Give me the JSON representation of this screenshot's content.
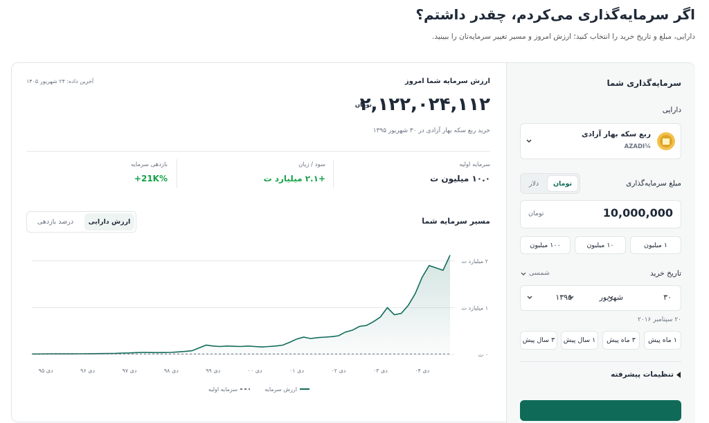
{
  "header": {
    "title": "اگر سرمایه‌گذاری می‌کردم، چقدر داشتم؟",
    "subtitle": "دارایی، مبلغ و تاریخ خرید را انتخاب کنید؛ ارزش امروز و مسیر تغییر سرمایه‌تان را ببینید."
  },
  "form": {
    "title": "سرمایه‌گذاری شما",
    "asset_label": "دارایی",
    "asset": {
      "name": "ربع سکه بهار آزادی",
      "code": "AZADI¼"
    },
    "amount_label": "مبلغ سرمایه‌گذاری",
    "currency_tabs": [
      "تومان",
      "دلار"
    ],
    "amount_input": "10,000,000",
    "amount_unit": "تومان",
    "quick_amounts": [
      "۱ میلیون",
      "۱۰ میلیون",
      "۱۰۰ میلیون"
    ],
    "date_label": "تاریخ خرید",
    "calendar": "شمسی",
    "date": {
      "day": "۳۰",
      "month": "شهریور",
      "year": "۱۳۹۵"
    },
    "gregorian": "۲۰ سپتامبر ۲۰۱۶",
    "quick_dates": [
      "۱ ماه پیش",
      "۳ ماه پیش",
      "۱ سال پیش",
      "۳ سال پیش"
    ],
    "advanced": "تنظیمات پیشرفته"
  },
  "result": {
    "label": "ارزش سرمایه شما امروز",
    "last_update": "آخرین داده: ۲۴ شهریور ۱۴۰۵",
    "value": "۲,۱۲۲,۰۲۴,۱۱۲",
    "value_unit": "تومان",
    "description": "خرید ربع سکه بهار آزادی در ۳۰ شهریور ۱۳۹۵",
    "stats": [
      {
        "label": "سرمایه اولیه",
        "value": "۱۰.۰ میلیون ت"
      },
      {
        "label": "سود / زیان",
        "value": "+۲.۱ میلیارد ت"
      },
      {
        "label": "بازدهی سرمایه",
        "value": "+21K%"
      }
    ]
  },
  "chart_section": {
    "title": "مسیر سرمایه شما",
    "tabs": [
      "ارزش دارایی",
      "درصد بازدهی"
    ]
  },
  "chart_data": {
    "type": "line",
    "categories": [
      null,
      null,
      "دی ۹۵",
      null,
      null,
      null,
      null,
      null,
      "دی ۹۶",
      null,
      null,
      null,
      null,
      null,
      "دی ۹۷",
      null,
      null,
      null,
      null,
      null,
      "دی ۹۸",
      null,
      null,
      null,
      null,
      null,
      "دی ۹۹",
      null,
      null,
      null,
      null,
      null,
      "دی ۰۰",
      null,
      null,
      null,
      null,
      null,
      "دی ۰۱",
      null,
      null,
      null,
      null,
      null,
      "دی ۰۲",
      null,
      null,
      null,
      null,
      null,
      "دی ۰۳",
      null,
      null,
      null,
      null,
      null,
      "دی ۰۴",
      null,
      null,
      null,
      null
    ],
    "series": [
      {
        "name": "ارزش سرمایه",
        "color": "#0f6b5a",
        "values": [
          10000000,
          11000000,
          12000000,
          13000000,
          13000000,
          14000000,
          14000000,
          15000000,
          16000000,
          18000000,
          19000000,
          22000000,
          24000000,
          30000000,
          32000000,
          40000000,
          45000000,
          42000000,
          40000000,
          42000000,
          45000000,
          55000000,
          65000000,
          80000000,
          140000000,
          200000000,
          180000000,
          170000000,
          180000000,
          175000000,
          170000000,
          180000000,
          170000000,
          160000000,
          170000000,
          180000000,
          200000000,
          260000000,
          330000000,
          370000000,
          340000000,
          360000000,
          370000000,
          380000000,
          400000000,
          480000000,
          520000000,
          600000000,
          620000000,
          700000000,
          800000000,
          1000000000,
          850000000,
          880000000,
          1050000000,
          1300000000,
          1650000000,
          1900000000,
          1850000000,
          1800000000,
          2122024112
        ]
      },
      {
        "name": "سرمایه اولیه",
        "color": "#6b7280",
        "dashed": true,
        "values": [
          10000000,
          10000000,
          10000000,
          10000000,
          10000000,
          10000000,
          10000000,
          10000000,
          10000000,
          10000000,
          10000000,
          10000000,
          10000000,
          10000000,
          10000000,
          10000000,
          10000000,
          10000000,
          10000000,
          10000000,
          10000000,
          10000000,
          10000000,
          10000000,
          10000000,
          10000000,
          10000000,
          10000000,
          10000000,
          10000000,
          10000000,
          10000000,
          10000000,
          10000000,
          10000000,
          10000000,
          10000000,
          10000000,
          10000000,
          10000000,
          10000000,
          10000000,
          10000000,
          10000000,
          10000000,
          10000000,
          10000000,
          10000000,
          10000000,
          10000000,
          10000000,
          10000000,
          10000000,
          10000000,
          10000000,
          10000000,
          10000000,
          10000000,
          10000000,
          10000000,
          10000000
        ]
      }
    ],
    "ylim": [
      0,
      2250000000
    ],
    "yticks": [
      {
        "value": 0,
        "label": "۰ ت"
      },
      {
        "value": 1000000000,
        "label": "۱ میلیارد ت"
      },
      {
        "value": 2000000000,
        "label": "۲ میلیارد ت"
      }
    ],
    "grid": true,
    "area": true
  }
}
